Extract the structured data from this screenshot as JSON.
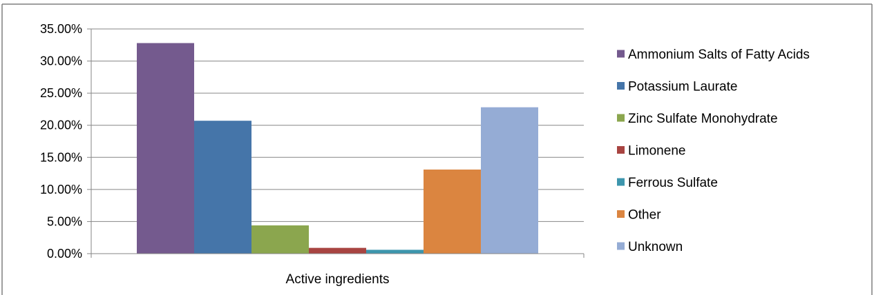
{
  "chart_data": {
    "type": "bar",
    "categories": [
      "Active ingredients"
    ],
    "series": [
      {
        "name": "Ammonium Salts of Fatty Acids",
        "values": [
          0.328
        ],
        "color": "#745a8e"
      },
      {
        "name": "Potassium Laurate",
        "values": [
          0.207
        ],
        "color": "#4575a9"
      },
      {
        "name": "Zinc Sulfate Monohydrate",
        "values": [
          0.044
        ],
        "color": "#8ba64e"
      },
      {
        "name": "Limonene",
        "values": [
          0.009
        ],
        "color": "#a84441"
      },
      {
        "name": "Ferrous Sulfate",
        "values": [
          0.006
        ],
        "color": "#3d96ad"
      },
      {
        "name": "Other",
        "values": [
          0.131
        ],
        "color": "#db8540"
      },
      {
        "name": "Unknown",
        "values": [
          0.228
        ],
        "color": "#95acd5"
      }
    ],
    "yticks": [
      "0.00%",
      "5.00%",
      "10.00%",
      "15.00%",
      "20.00%",
      "25.00%",
      "30.00%",
      "35.00%"
    ],
    "ylim": [
      0,
      0.35
    ],
    "title": "",
    "xlabel": "",
    "ylabel": "",
    "grid": true,
    "legend_position": "right"
  }
}
